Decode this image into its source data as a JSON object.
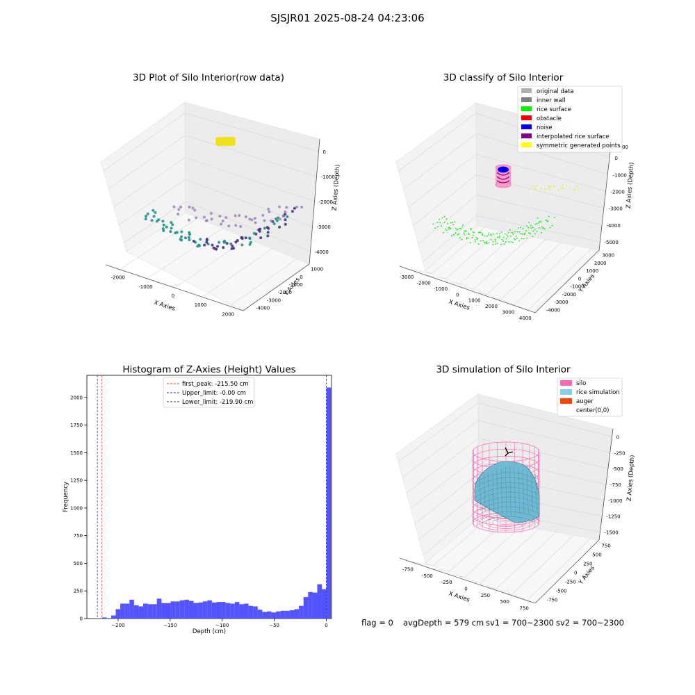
{
  "figure": {
    "suptitle": "SJSJR01 2025-08-24 04:23:06",
    "footer": {
      "flag": "flag = 0",
      "avg_depth": "avgDepth = 579 cm",
      "sv1": "sv1 = 700~2300",
      "sv2": "sv2 = 700~2300"
    }
  },
  "colors": {
    "bg": "#ffffff",
    "pane": "#f2f2f2",
    "grid": "#d4d4d4",
    "hist_bar": "#4b4bff",
    "peak_line": "#ff3030",
    "limit_line": "#3030a0",
    "viridis_dark": "#46337e",
    "viridis_mid": "#21918c",
    "viridis_light": "#9e82b5",
    "yellow": "#f0e01a",
    "silo": "#ff69b4",
    "rice": "#87ceeb"
  },
  "chart_data": [
    {
      "type": "scatter",
      "name": "plot-raw",
      "title": "3D Plot of Silo Interior(row data)",
      "xlabel": "X Axies",
      "ylabel": "Y Axies",
      "zlabel": "Z Axies (Depth)",
      "x_ticks": [
        "-2000",
        "-1000",
        "0",
        "1000",
        "2000"
      ],
      "y_ticks": [
        "1000",
        "0",
        "-1000",
        "-2000",
        "-3000",
        "-4000"
      ],
      "z_ticks": [
        "0",
        "-1000",
        "-2000",
        "-3000",
        "-4000"
      ]
    },
    {
      "type": "scatter",
      "name": "plot-classify",
      "title": "3D classify of Silo Interior",
      "xlabel": "X Axies",
      "ylabel": "Y Axies",
      "zlabel": "Z Axies (Depth)",
      "x_ticks": [
        "-3000",
        "-2000",
        "-1000",
        "0",
        "1000",
        "2000",
        "3000",
        "4000"
      ],
      "y_ticks": [
        "3000",
        "2000",
        "1000",
        "0",
        "-1000",
        "-2000",
        "-3000",
        "-4000"
      ],
      "z_ticks": [
        "0",
        "-1000",
        "-2000",
        "-3000",
        "-4000",
        "-5000"
      ],
      "z_top_partial": "00",
      "legend": [
        {
          "label": "original data",
          "color": "#b0b0b0"
        },
        {
          "label": "inner wall",
          "color": "#808080"
        },
        {
          "label": "rice surface",
          "color": "#00ee00"
        },
        {
          "label": "obstacle",
          "color": "#ee0000"
        },
        {
          "label": "noise",
          "color": "#0000ee"
        },
        {
          "label": "interpolated rice surface",
          "color": "#800080"
        },
        {
          "label": "symmetric generated points",
          "color": "#ffff00"
        }
      ]
    },
    {
      "type": "bar",
      "name": "plot-histogram",
      "title": "Histogram of Z-Axies (Height) Values",
      "xlabel": "Depth (cm)",
      "ylabel": "Frequency",
      "xlim": [
        -230,
        5
      ],
      "ylim": [
        0,
        2200
      ],
      "x_ticks": [
        -200,
        -150,
        -100,
        -50,
        0
      ],
      "y_ticks": [
        0,
        250,
        500,
        750,
        1000,
        1250,
        1500,
        1750,
        2000
      ],
      "bin_start": -219.9,
      "bin_width": 4.4,
      "values": [
        2,
        10,
        0,
        28,
        85,
        135,
        135,
        170,
        120,
        110,
        135,
        130,
        130,
        180,
        140,
        140,
        155,
        155,
        165,
        170,
        160,
        140,
        145,
        155,
        165,
        145,
        150,
        150,
        140,
        135,
        150,
        130,
        135,
        115,
        110,
        80,
        60,
        65,
        55,
        65,
        70,
        70,
        75,
        85,
        115,
        195,
        240,
        235,
        310,
        265,
        2090
      ],
      "vlines": [
        {
          "label": "first_peak: -215.50 cm",
          "x": -215.5,
          "style": "peak"
        },
        {
          "label": "Upper_limit: -0.00 cm",
          "x": 0,
          "style": "limit"
        },
        {
          "label": "Lower_limit: -219.90 cm",
          "x": -219.9,
          "style": "limit"
        }
      ]
    },
    {
      "type": "surface",
      "name": "plot-simulation",
      "title": "3D simulation of Silo Interior",
      "xlabel": "X Axies",
      "ylabel": "Y Axies",
      "zlabel": "Z Axies (Depth)",
      "x_ticks": [
        "-750",
        "-500",
        "-250",
        "0",
        "250",
        "500",
        "750"
      ],
      "y_ticks": [
        "750",
        "500",
        "250",
        "0",
        "-250",
        "-500",
        "-750"
      ],
      "z_ticks": [
        "0",
        "-250",
        "-500",
        "-750",
        "-1000",
        "-1250",
        "-1500"
      ],
      "legend": [
        {
          "label": "silo",
          "color": "#ff69b4"
        },
        {
          "label": "rice simulation",
          "color": "#87ceeb"
        },
        {
          "label": "auger",
          "color": "#ff4500"
        },
        {
          "label": "center(0,0)",
          "color": ""
        }
      ]
    }
  ]
}
